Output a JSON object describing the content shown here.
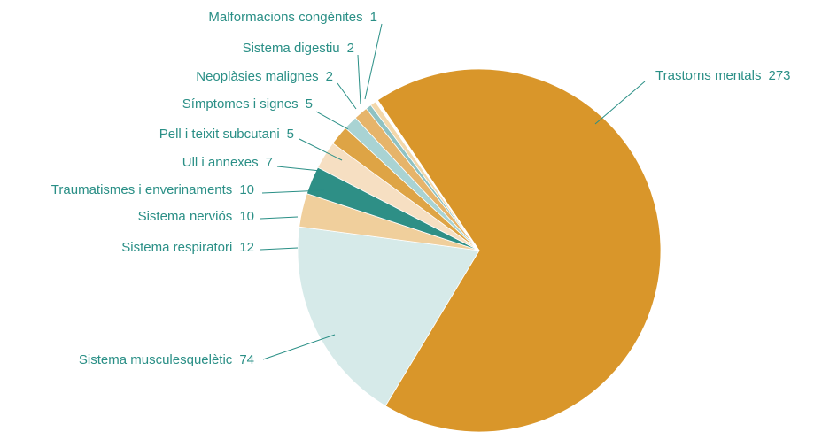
{
  "chart_data": {
    "type": "pie",
    "categories": [
      "Trastorns mentals",
      "Sistema musculesquelètic",
      "Sistema respiratori",
      "Sistema nerviós",
      "Traumatismes i enverinaments",
      "Ull i annexes",
      "Pell i teixit subcutani",
      "Símptomes i signes",
      "Neoplàsies malignes",
      "Sistema digestiu",
      "Malformacions congènites"
    ],
    "values": [
      273,
      74,
      12,
      10,
      10,
      7,
      5,
      5,
      2,
      2,
      1
    ],
    "colors": [
      "#d9962a",
      "#d6eae9",
      "#f0cf9c",
      "#2e8f86",
      "#f6dfc2",
      "#dea445",
      "#a9d3d3",
      "#e6b46a",
      "#8fc2c2",
      "#f3d8ab",
      "#ffffff"
    ]
  }
}
